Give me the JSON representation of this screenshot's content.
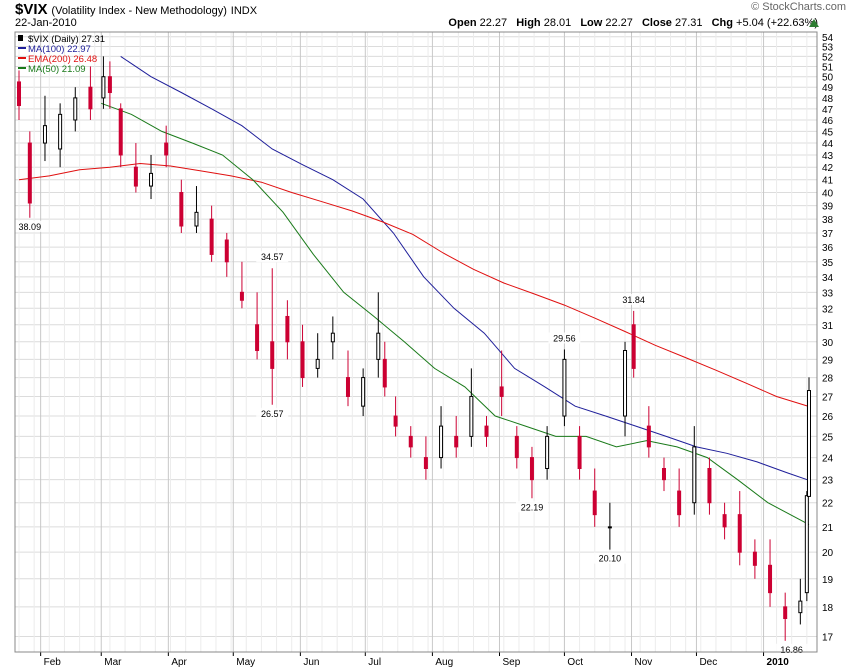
{
  "header": {
    "symbol": "$VIX",
    "description": "(Volatility Index - New Methodology)",
    "exchange": "INDX",
    "date": "22-Jan-2010",
    "brand": "© StockCharts.com",
    "open_label": "Open",
    "open": "22.27",
    "high_label": "High",
    "high": "28.01",
    "low_label": "Low",
    "low": "22.27",
    "close_label": "Close",
    "close": "27.31",
    "chg_label": "Chg",
    "chg": "+5.04 (+22.63%)"
  },
  "colors": {
    "up_candle": "#000000",
    "down_candle": "#cc0033",
    "ma100": "#1f1f9a",
    "ema200": "#e01010",
    "ma50": "#1a7a1a",
    "grid": "#dcdcdc",
    "chg_arrow": "#2e7d32"
  },
  "chart_data": {
    "type": "candlestick",
    "y_scale": "log",
    "ylim": [
      16.5,
      54.5
    ],
    "y_ticks": [
      17,
      18,
      19,
      20,
      21,
      22,
      23,
      24,
      25,
      26,
      27,
      28,
      29,
      30,
      31,
      32,
      33,
      34,
      35,
      36,
      37,
      38,
      39,
      40,
      41,
      42,
      43,
      44,
      45,
      46,
      47,
      48,
      49,
      50,
      51,
      52,
      53,
      54
    ],
    "x_range": [
      "2009-01-22",
      "2010-01-22"
    ],
    "x_ticks": [
      {
        "date": "2009-02-01",
        "label": "Feb"
      },
      {
        "date": "2009-03-01",
        "label": "Mar"
      },
      {
        "date": "2009-04-01",
        "label": "Apr"
      },
      {
        "date": "2009-05-01",
        "label": "May"
      },
      {
        "date": "2009-06-01",
        "label": "Jun"
      },
      {
        "date": "2009-07-01",
        "label": "Jul"
      },
      {
        "date": "2009-08-01",
        "label": "Aug"
      },
      {
        "date": "2009-09-01",
        "label": "Sep"
      },
      {
        "date": "2009-10-01",
        "label": "Oct"
      },
      {
        "date": "2009-11-01",
        "label": "Nov"
      },
      {
        "date": "2009-12-01",
        "label": "Dec"
      },
      {
        "date": "2010-01-01",
        "label": "2010"
      }
    ],
    "legend": [
      {
        "label": "$VIX (Daily) 27.31",
        "series": "price"
      },
      {
        "label": "MA(100) 22.97",
        "series": "ma100"
      },
      {
        "label": "EMA(200) 26.48",
        "series": "ema200"
      },
      {
        "label": "MA(50) 21.09",
        "series": "ma50"
      }
    ],
    "legend_position": "top-left",
    "annotations": [
      {
        "date": "2009-01-27",
        "value": 38.09,
        "text": "38.09",
        "place": "below"
      },
      {
        "date": "2009-05-19",
        "value": 34.57,
        "text": "34.57",
        "place": "above"
      },
      {
        "date": "2009-05-19",
        "value": 26.57,
        "text": "26.57",
        "place": "below"
      },
      {
        "date": "2009-09-16",
        "value": 22.19,
        "text": "22.19",
        "place": "below"
      },
      {
        "date": "2009-10-01",
        "value": 29.56,
        "text": "29.56",
        "place": "above"
      },
      {
        "date": "2009-10-22",
        "value": 20.1,
        "text": "20.10",
        "place": "below"
      },
      {
        "date": "2009-11-02",
        "value": 31.84,
        "text": "31.84",
        "place": "above"
      },
      {
        "date": "2010-01-14",
        "value": 16.86,
        "text": "16.86",
        "place": "below"
      }
    ],
    "candles": [
      [
        "2009-01-22",
        49.5,
        50.6,
        46.0,
        47.3
      ],
      [
        "2009-01-27",
        44.0,
        45.0,
        38.1,
        39.2
      ],
      [
        "2009-02-03",
        44.0,
        48.2,
        42.5,
        45.5
      ],
      [
        "2009-02-10",
        43.5,
        47.5,
        42.0,
        46.5
      ],
      [
        "2009-02-17",
        46.0,
        49.0,
        45.0,
        48.0
      ],
      [
        "2009-02-24",
        49.0,
        51.0,
        46.0,
        47.0
      ],
      [
        "2009-03-02",
        48.0,
        52.0,
        47.0,
        50.0
      ],
      [
        "2009-03-05",
        50.0,
        51.5,
        47.0,
        48.5
      ],
      [
        "2009-03-10",
        47.0,
        47.5,
        42.0,
        43.0
      ],
      [
        "2009-03-17",
        42.0,
        44.0,
        40.0,
        40.5
      ],
      [
        "2009-03-24",
        40.5,
        43.0,
        39.5,
        41.5
      ],
      [
        "2009-03-31",
        44.0,
        45.5,
        42.0,
        43.0
      ],
      [
        "2009-04-07",
        40.0,
        41.0,
        37.0,
        37.5
      ],
      [
        "2009-04-14",
        37.5,
        40.5,
        37.0,
        38.5
      ],
      [
        "2009-04-21",
        38.0,
        39.0,
        35.0,
        35.5
      ],
      [
        "2009-04-28",
        36.5,
        37.0,
        34.0,
        35.0
      ],
      [
        "2009-05-05",
        33.0,
        35.0,
        32.0,
        32.5
      ],
      [
        "2009-05-12",
        31.0,
        33.0,
        29.0,
        29.5
      ],
      [
        "2009-05-19",
        30.0,
        34.57,
        26.57,
        28.5
      ],
      [
        "2009-05-26",
        31.5,
        32.5,
        29.0,
        30.0
      ],
      [
        "2009-06-02",
        30.0,
        31.0,
        27.5,
        28.0
      ],
      [
        "2009-06-09",
        28.5,
        30.5,
        28.0,
        29.0
      ],
      [
        "2009-06-16",
        30.0,
        31.5,
        29.0,
        30.5
      ],
      [
        "2009-06-23",
        28.0,
        29.5,
        26.5,
        27.0
      ],
      [
        "2009-06-30",
        26.5,
        28.5,
        26.0,
        28.0
      ],
      [
        "2009-07-07",
        29.0,
        33.0,
        28.0,
        30.5
      ],
      [
        "2009-07-10",
        29.0,
        30.0,
        27.0,
        27.5
      ],
      [
        "2009-07-15",
        26.0,
        27.0,
        25.0,
        25.5
      ],
      [
        "2009-07-22",
        25.0,
        25.5,
        24.0,
        24.5
      ],
      [
        "2009-07-29",
        24.0,
        25.0,
        23.0,
        23.5
      ],
      [
        "2009-08-05",
        24.0,
        26.5,
        23.5,
        25.5
      ],
      [
        "2009-08-12",
        25.0,
        26.0,
        24.0,
        24.5
      ],
      [
        "2009-08-19",
        25.0,
        28.5,
        24.5,
        27.0
      ],
      [
        "2009-08-26",
        25.5,
        26.0,
        24.5,
        25.0
      ],
      [
        "2009-09-02",
        27.5,
        29.5,
        26.0,
        27.0
      ],
      [
        "2009-09-09",
        25.0,
        25.5,
        23.5,
        24.0
      ],
      [
        "2009-09-16",
        24.0,
        24.5,
        22.19,
        23.0
      ],
      [
        "2009-09-23",
        23.5,
        25.5,
        23.0,
        25.0
      ],
      [
        "2009-10-01",
        26.0,
        29.56,
        25.5,
        29.0
      ],
      [
        "2009-10-08",
        25.0,
        25.5,
        23.0,
        23.5
      ],
      [
        "2009-10-15",
        22.5,
        23.5,
        21.0,
        21.5
      ],
      [
        "2009-10-22",
        21.0,
        22.0,
        20.1,
        21.0
      ],
      [
        "2009-10-29",
        26.0,
        30.0,
        25.0,
        29.5
      ],
      [
        "2009-11-02",
        31.0,
        31.84,
        28.0,
        28.5
      ],
      [
        "2009-11-09",
        25.5,
        26.5,
        24.0,
        24.5
      ],
      [
        "2009-11-16",
        23.5,
        24.0,
        22.5,
        23.0
      ],
      [
        "2009-11-23",
        22.5,
        23.5,
        21.0,
        21.5
      ],
      [
        "2009-11-30",
        22.0,
        25.5,
        21.5,
        24.5
      ],
      [
        "2009-12-07",
        23.5,
        24.0,
        21.5,
        22.0
      ],
      [
        "2009-12-14",
        21.5,
        22.0,
        20.5,
        21.0
      ],
      [
        "2009-12-21",
        21.5,
        22.5,
        19.5,
        20.0
      ],
      [
        "2009-12-28",
        20.0,
        20.5,
        19.0,
        19.5
      ],
      [
        "2010-01-04",
        19.5,
        20.5,
        18.0,
        18.5
      ],
      [
        "2010-01-11",
        18.0,
        18.5,
        16.86,
        17.6
      ],
      [
        "2010-01-18",
        17.8,
        19.0,
        17.4,
        18.2
      ],
      [
        "2010-01-21",
        18.5,
        22.5,
        18.2,
        22.3
      ],
      [
        "2010-01-22",
        22.27,
        28.01,
        22.27,
        27.31
      ]
    ],
    "series": [
      {
        "key": "ma100",
        "points": [
          [
            "2009-03-10",
            52.0
          ],
          [
            "2009-03-24",
            50.0
          ],
          [
            "2009-04-07",
            48.5
          ],
          [
            "2009-04-21",
            47.0
          ],
          [
            "2009-05-05",
            45.5
          ],
          [
            "2009-05-19",
            43.5
          ],
          [
            "2009-06-02",
            42.2
          ],
          [
            "2009-06-16",
            41.0
          ],
          [
            "2009-06-30",
            39.5
          ],
          [
            "2009-07-14",
            37.0
          ],
          [
            "2009-07-28",
            34.0
          ],
          [
            "2009-08-11",
            32.0
          ],
          [
            "2009-08-25",
            30.5
          ],
          [
            "2009-09-08",
            28.5
          ],
          [
            "2009-09-22",
            27.5
          ],
          [
            "2009-10-06",
            26.5
          ],
          [
            "2009-10-20",
            26.0
          ],
          [
            "2009-11-03",
            25.5
          ],
          [
            "2009-11-17",
            25.0
          ],
          [
            "2009-12-01",
            24.5
          ],
          [
            "2009-12-15",
            24.2
          ],
          [
            "2009-12-29",
            23.8
          ],
          [
            "2010-01-12",
            23.3
          ],
          [
            "2010-01-22",
            22.97
          ]
        ]
      },
      {
        "key": "ema200",
        "points": [
          [
            "2009-01-22",
            41.0
          ],
          [
            "2009-02-05",
            41.3
          ],
          [
            "2009-02-19",
            41.8
          ],
          [
            "2009-03-05",
            42.0
          ],
          [
            "2009-03-19",
            42.3
          ],
          [
            "2009-04-02",
            42.1
          ],
          [
            "2009-04-16",
            41.7
          ],
          [
            "2009-04-30",
            41.3
          ],
          [
            "2009-05-14",
            40.8
          ],
          [
            "2009-05-28",
            40.0
          ],
          [
            "2009-06-11",
            39.3
          ],
          [
            "2009-06-25",
            38.6
          ],
          [
            "2009-07-09",
            37.8
          ],
          [
            "2009-07-23",
            36.9
          ],
          [
            "2009-08-06",
            35.6
          ],
          [
            "2009-08-20",
            34.5
          ],
          [
            "2009-09-03",
            33.6
          ],
          [
            "2009-09-17",
            32.9
          ],
          [
            "2009-10-01",
            32.2
          ],
          [
            "2009-10-15",
            31.4
          ],
          [
            "2009-10-29",
            30.6
          ],
          [
            "2009-11-12",
            29.8
          ],
          [
            "2009-11-26",
            29.1
          ],
          [
            "2009-12-10",
            28.4
          ],
          [
            "2009-12-24",
            27.7
          ],
          [
            "2010-01-07",
            27.0
          ],
          [
            "2010-01-22",
            26.48
          ]
        ]
      },
      {
        "key": "ma50",
        "points": [
          [
            "2009-03-01",
            47.5
          ],
          [
            "2009-03-15",
            46.5
          ],
          [
            "2009-03-29",
            45.0
          ],
          [
            "2009-04-12",
            44.0
          ],
          [
            "2009-04-26",
            43.0
          ],
          [
            "2009-05-10",
            41.0
          ],
          [
            "2009-05-24",
            38.5
          ],
          [
            "2009-06-07",
            35.5
          ],
          [
            "2009-06-21",
            33.0
          ],
          [
            "2009-07-05",
            31.5
          ],
          [
            "2009-07-19",
            30.0
          ],
          [
            "2009-08-02",
            28.5
          ],
          [
            "2009-08-16",
            27.5
          ],
          [
            "2009-08-30",
            26.0
          ],
          [
            "2009-09-13",
            25.5
          ],
          [
            "2009-09-27",
            25.0
          ],
          [
            "2009-10-11",
            25.0
          ],
          [
            "2009-10-25",
            24.5
          ],
          [
            "2009-11-08",
            24.8
          ],
          [
            "2009-11-22",
            24.5
          ],
          [
            "2009-12-06",
            24.0
          ],
          [
            "2009-12-20",
            23.0
          ],
          [
            "2010-01-03",
            22.0
          ],
          [
            "2010-01-22",
            21.09
          ]
        ]
      }
    ]
  }
}
